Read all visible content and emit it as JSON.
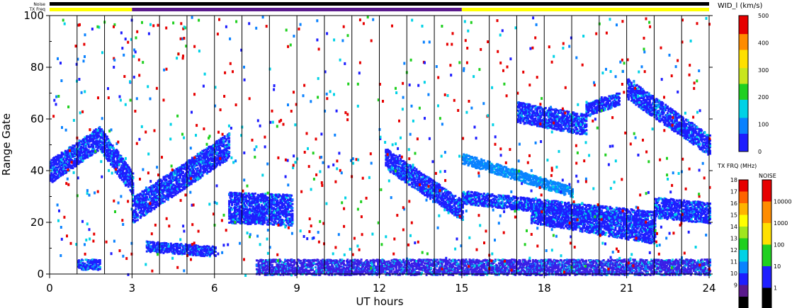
{
  "chart_data": {
    "type": "scatter",
    "xlabel": "UT hours",
    "ylabel": "Range Gate",
    "xlim": [
      0,
      24
    ],
    "ylim": [
      0,
      100
    ],
    "x_ticks": [
      0,
      3,
      6,
      9,
      12,
      15,
      18,
      21,
      24
    ],
    "y_ticks": [
      0,
      20,
      40,
      60,
      80,
      100
    ],
    "scan_boundaries_hours": [
      1,
      2,
      3,
      4,
      5,
      6,
      7,
      8,
      9,
      10,
      11,
      12,
      13,
      14,
      15,
      16,
      17,
      18,
      19,
      20,
      21,
      22,
      23
    ],
    "top_bars": {
      "noise_label": "Noise",
      "txfreq_label": "TX Freq",
      "noise_color": "#000000",
      "txfreq_segments": [
        {
          "start": 0,
          "end": 3,
          "color": "#ffff00"
        },
        {
          "start": 3,
          "end": 15,
          "color": "#5a1a8c"
        },
        {
          "start": 15,
          "end": 24,
          "color": "#ffff00"
        }
      ]
    },
    "width_colorbar": {
      "label": "WID_l (km/s)",
      "ticks": [
        0,
        100,
        200,
        300,
        400,
        500
      ],
      "colors": [
        "#1e1eff",
        "#0a82ff",
        "#00d2e6",
        "#20d020",
        "#c8e61e",
        "#ffe000",
        "#ff8c00",
        "#e60000"
      ]
    },
    "txfreq_colorbar": {
      "label": "TX FRQ (MHz)",
      "ticks": [
        "18",
        "17",
        "16",
        "15",
        "14",
        "13",
        "12",
        "11",
        "10",
        "9"
      ],
      "colors": [
        "#e60000",
        "#ff6400",
        "#ffb400",
        "#ffff00",
        "#a0e61e",
        "#20d020",
        "#00d2e6",
        "#0a82ff",
        "#1e1eff",
        "#5a1a8c",
        "#000000"
      ]
    },
    "noise_colorbar": {
      "label": "NOISE",
      "ticks": [
        "10000",
        "1000",
        "100",
        "10",
        "1"
      ],
      "colors": [
        "#e60000",
        "#ff8c00",
        "#ffe000",
        "#20d020",
        "#1e1eff",
        "#000000"
      ]
    },
    "regions": [
      {
        "name": "band-0-3h",
        "x": [
          0,
          3
        ],
        "y_start": 40,
        "y_end": 35,
        "y_peak": 53,
        "peak_x": 1.8,
        "thickness": 9,
        "color": "#1e1eff"
      },
      {
        "name": "band-3-6.5h",
        "x": [
          3,
          6.5
        ],
        "y_start": 25,
        "y_end": 50,
        "thickness": 10,
        "color": "#1e1eff"
      },
      {
        "name": "patch-6.5-8.8h",
        "x": [
          6.5,
          8.8
        ],
        "y_start": 26,
        "y_end": 25,
        "thickness": 12,
        "color": "#1e1eff"
      },
      {
        "name": "patch-3.5-6h-low",
        "x": [
          3.5,
          6
        ],
        "y_start": 11,
        "y_end": 9,
        "thickness": 4,
        "color": "#1e1eff"
      },
      {
        "name": "patch-1-1.8h-low",
        "x": [
          1,
          1.8
        ],
        "y_start": 4,
        "y_end": 4,
        "thickness": 4,
        "color": "#1e1eff"
      },
      {
        "name": "slant-12.2-15h",
        "x": [
          12.2,
          15
        ],
        "y_start": 45,
        "y_end": 25,
        "thickness": 8,
        "color": "#1e1eff"
      },
      {
        "name": "slant-15-19h",
        "x": [
          15,
          19
        ],
        "y_start": 45,
        "y_end": 32,
        "thickness": 4,
        "color": "#0a82ff"
      },
      {
        "name": "band-15-22h-mid",
        "x": [
          15,
          22
        ],
        "y_start": 30,
        "y_end": 22,
        "thickness": 5,
        "color": "#1e1eff"
      },
      {
        "name": "band-17.5-22h",
        "x": [
          17.5,
          22
        ],
        "y_start": 24,
        "y_end": 16,
        "thickness": 8,
        "color": "#1e1eff"
      },
      {
        "name": "band-22-24h-low",
        "x": [
          22,
          24
        ],
        "y_start": 26,
        "y_end": 24,
        "thickness": 8,
        "color": "#1e1eff"
      },
      {
        "name": "blob-17-19.5h",
        "x": [
          17,
          19.5
        ],
        "y_start": 63,
        "y_end": 58,
        "thickness": 8,
        "color": "#1e1eff"
      },
      {
        "name": "blob-19.5-20.7h",
        "x": [
          19.5,
          20.7
        ],
        "y_start": 64,
        "y_end": 68,
        "thickness": 5,
        "color": "#1e1eff"
      },
      {
        "name": "slant-21-24h",
        "x": [
          21,
          24
        ],
        "y_start": 72,
        "y_end": 50,
        "thickness": 8,
        "color": "#1e1eff"
      },
      {
        "name": "ground-band",
        "x": [
          7.5,
          24
        ],
        "y_start": 3,
        "y_end": 3,
        "thickness": 6,
        "color": "#3a1ee6"
      }
    ]
  }
}
